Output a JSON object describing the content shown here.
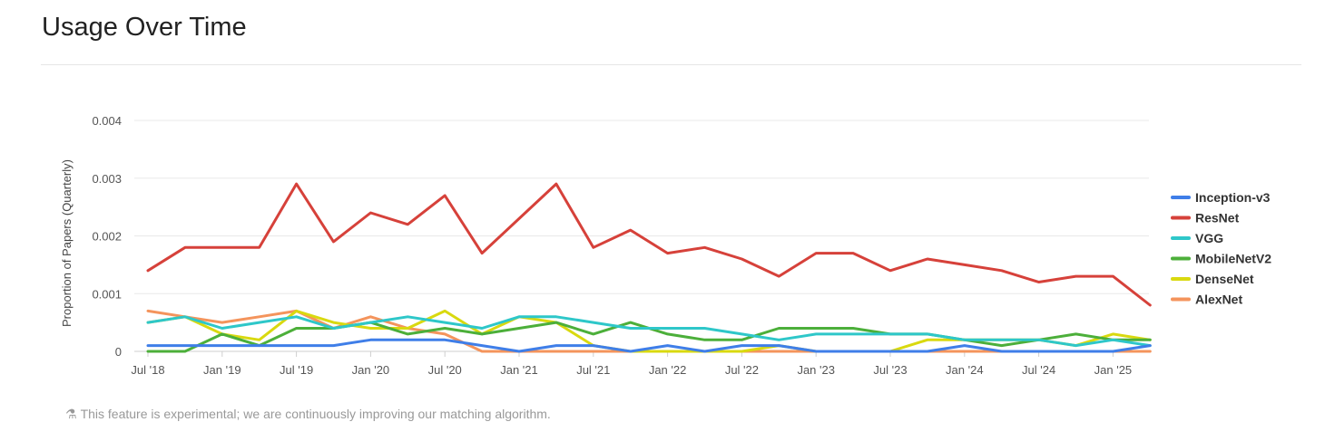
{
  "page": {
    "title": "Usage Over Time",
    "footnote": "This feature is experimental; we are continuously improving our matching algorithm.",
    "footnote_icon": "flask-icon"
  },
  "chart_data": {
    "type": "line",
    "title": "",
    "xlabel": "",
    "ylabel": "Proportion of Papers (Quarterly)",
    "ylim": [
      0,
      0.004
    ],
    "yticks": [
      0,
      0.001,
      0.002,
      0.003,
      0.004
    ],
    "ytick_labels": [
      "0",
      "0.001",
      "0.002",
      "0.003",
      "0.004"
    ],
    "xtick_labels": [
      "Jul '18",
      "Jan '19",
      "Jul '19",
      "Jan '20",
      "Jul '20",
      "Jan '21",
      "Jul '21",
      "Jan '22",
      "Jul '22",
      "Jan '23",
      "Jul '23",
      "Jan '24",
      "Jul '24",
      "Jan '25"
    ],
    "x": [
      "2018 Q3",
      "2018 Q4",
      "2019 Q1",
      "2019 Q2",
      "2019 Q3",
      "2019 Q4",
      "2020 Q1",
      "2020 Q2",
      "2020 Q3",
      "2020 Q4",
      "2021 Q1",
      "2021 Q2",
      "2021 Q3",
      "2021 Q4",
      "2022 Q1",
      "2022 Q2",
      "2022 Q3",
      "2022 Q4",
      "2023 Q1",
      "2023 Q2",
      "2023 Q3",
      "2023 Q4",
      "2024 Q1",
      "2024 Q2",
      "2024 Q3",
      "2024 Q4",
      "2025 Q1",
      "2025 Q2"
    ],
    "grid": true,
    "legend_position": "right",
    "series": [
      {
        "name": "Inception-v3",
        "color": "#3f7ee8",
        "values": [
          0.0001,
          0.0001,
          0.0001,
          0.0001,
          0.0001,
          0.0001,
          0.0002,
          0.0002,
          0.0002,
          0.0001,
          0,
          0.0001,
          0.0001,
          0,
          0.0001,
          0,
          0.0001,
          0.0001,
          0,
          0,
          0,
          0,
          0.0001,
          0,
          0,
          0,
          0,
          0.0001
        ]
      },
      {
        "name": "ResNet",
        "color": "#d6413a",
        "values": [
          0.0014,
          0.0018,
          0.0018,
          0.0018,
          0.0029,
          0.0019,
          0.0024,
          0.0022,
          0.0027,
          0.0017,
          0.0023,
          0.0029,
          0.0018,
          0.0021,
          0.0017,
          0.0018,
          0.0016,
          0.0013,
          0.0017,
          0.0017,
          0.0014,
          0.0016,
          0.0015,
          0.0014,
          0.0012,
          0.0013,
          0.0013,
          0.0008
        ]
      },
      {
        "name": "VGG",
        "color": "#2ec7c9",
        "values": [
          0.0005,
          0.0006,
          0.0004,
          0.0005,
          0.0006,
          0.0004,
          0.0005,
          0.0006,
          0.0005,
          0.0004,
          0.0006,
          0.0006,
          0.0005,
          0.0004,
          0.0004,
          0.0004,
          0.0003,
          0.0002,
          0.0003,
          0.0003,
          0.0003,
          0.0003,
          0.0002,
          0.0002,
          0.0002,
          0.0001,
          0.0002,
          0.0001
        ]
      },
      {
        "name": "MobileNetV2",
        "color": "#4caf3a",
        "values": [
          0,
          0,
          0.0003,
          0.0001,
          0.0004,
          0.0004,
          0.0005,
          0.0003,
          0.0004,
          0.0003,
          0.0004,
          0.0005,
          0.0003,
          0.0005,
          0.0003,
          0.0002,
          0.0002,
          0.0004,
          0.0004,
          0.0004,
          0.0003,
          0.0003,
          0.0002,
          0.0001,
          0.0002,
          0.0003,
          0.0002,
          0.0002
        ]
      },
      {
        "name": "DenseNet",
        "color": "#d9d90f",
        "values": [
          0.0005,
          0.0006,
          0.0003,
          0.0002,
          0.0007,
          0.0005,
          0.0004,
          0.0004,
          0.0007,
          0.0003,
          0.0006,
          0.0005,
          0.0001,
          0,
          0,
          0,
          0,
          0.0001,
          0,
          0,
          0,
          0.0002,
          0.0002,
          0.0002,
          0.0002,
          0.0001,
          0.0003,
          0.0002
        ]
      },
      {
        "name": "AlexNet",
        "color": "#f4945c",
        "values": [
          0.0007,
          0.0006,
          0.0005,
          0.0006,
          0.0007,
          0.0004,
          0.0006,
          0.0004,
          0.0003,
          0,
          0,
          0,
          0,
          0,
          0,
          0,
          0,
          0,
          0,
          0,
          0,
          0,
          0,
          0,
          0,
          0,
          0,
          0
        ]
      }
    ]
  }
}
